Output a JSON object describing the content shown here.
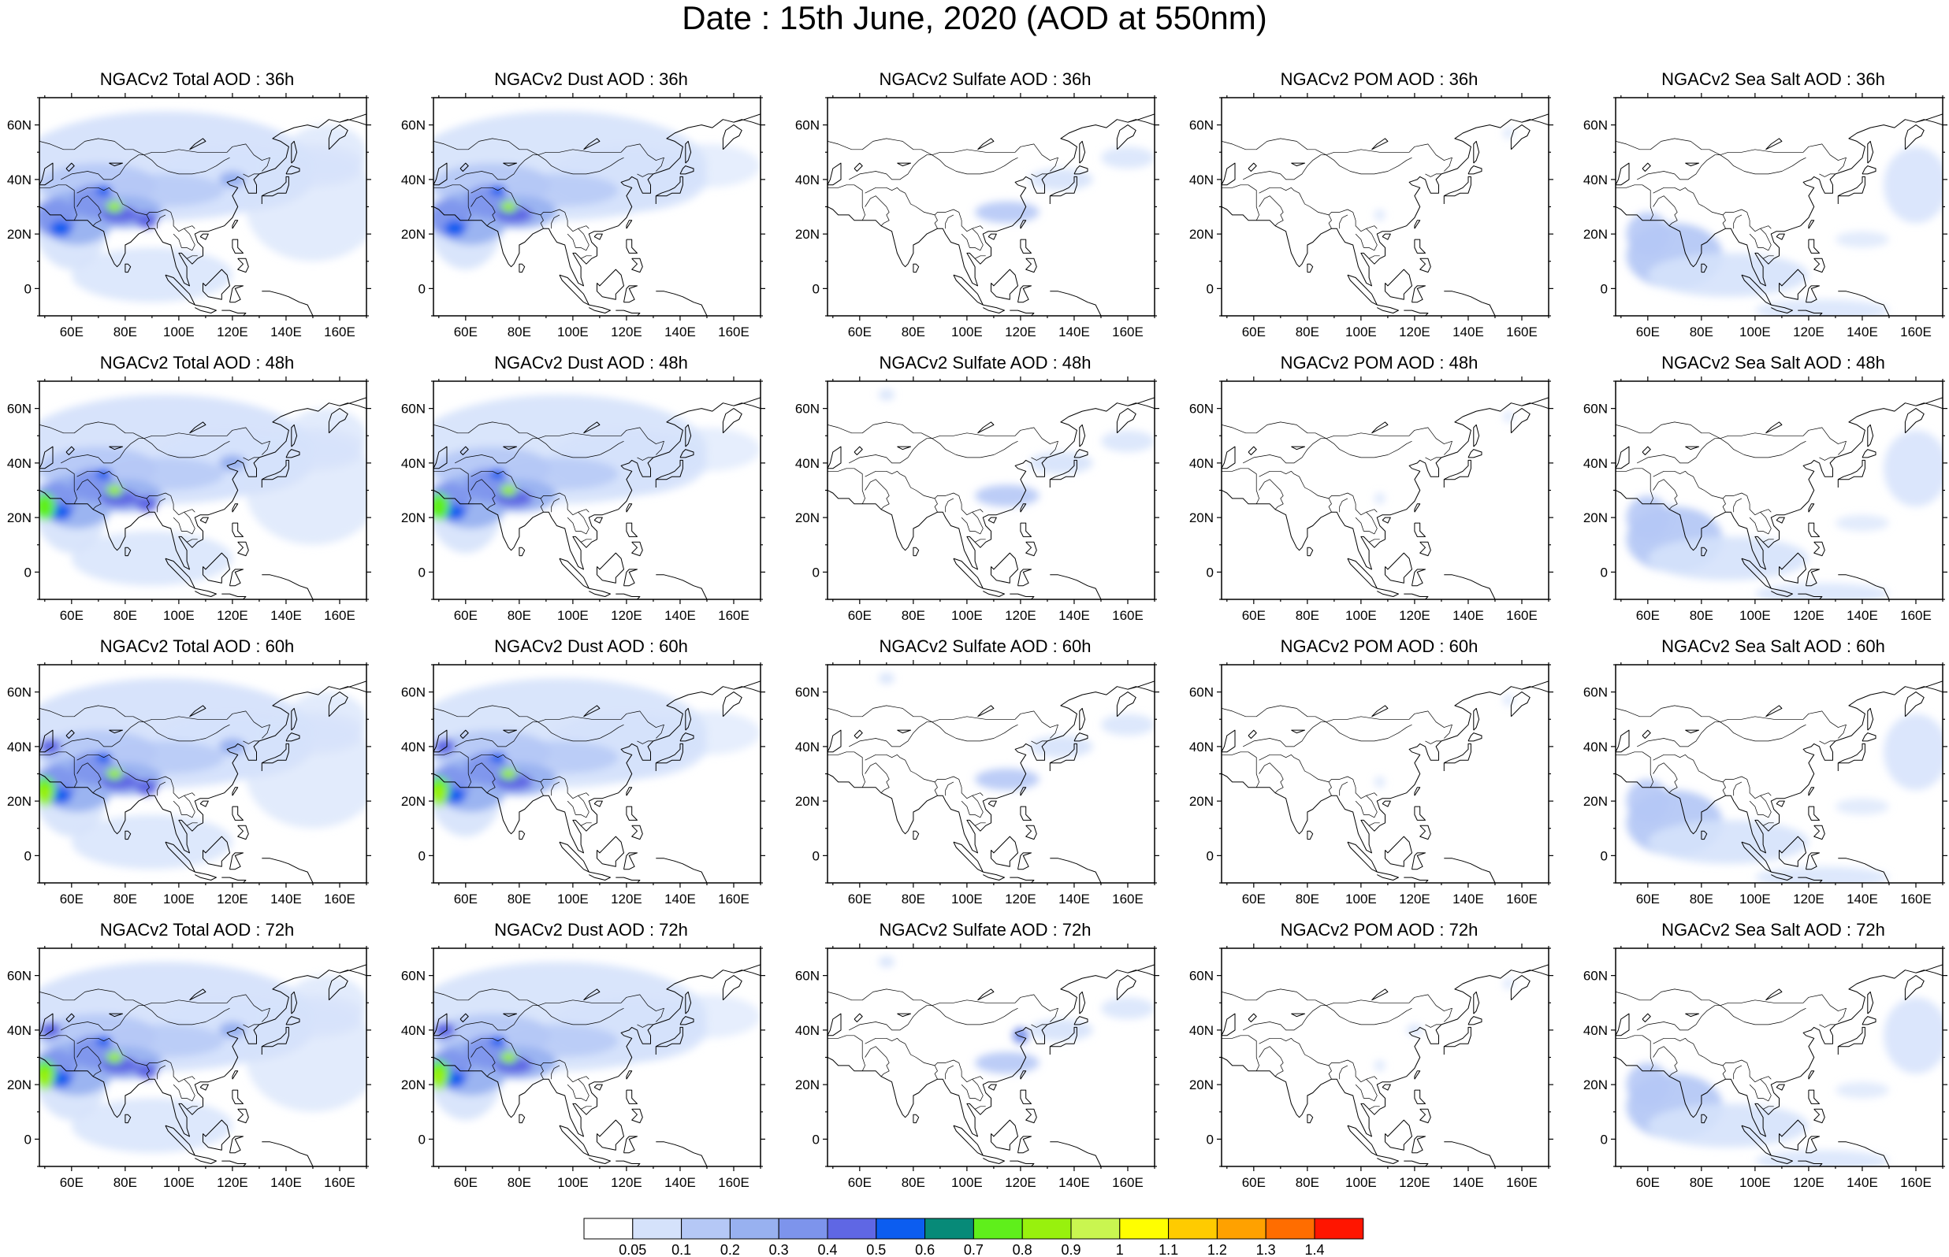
{
  "title": "Date : 15th June, 2020 (AOD at 550nm)",
  "colors": {
    "levels": [
      "#ffffff",
      "#d5e2fb",
      "#b5c8f6",
      "#98b1f0",
      "#7d94ec",
      "#5f67e4",
      "#0c5df0",
      "#078a78",
      "#5fef1b",
      "#98f10d",
      "#c9f650",
      "#fffe00",
      "#ffcb00",
      "#ffa100",
      "#ff6d00",
      "#ff1500"
    ],
    "coast": "#000000"
  },
  "colorbar": {
    "labels": [
      "0.05",
      "0.1",
      "0.2",
      "0.3",
      "0.4",
      "0.5",
      "0.6",
      "0.7",
      "0.8",
      "0.9",
      "1",
      "1.1",
      "1.2",
      "1.3",
      "1.4"
    ]
  },
  "axes": {
    "lon_labels": [
      "60E",
      "80E",
      "100E",
      "120E",
      "140E",
      "160E"
    ],
    "lon_values": [
      60,
      80,
      100,
      120,
      140,
      160
    ],
    "lat_labels": [
      "60N",
      "40N",
      "20N",
      "0"
    ],
    "lat_values": [
      60,
      40,
      20,
      0
    ],
    "lon_range": [
      48,
      170
    ],
    "lat_range": [
      -10,
      70
    ]
  },
  "panels": [
    {
      "title": "NGACv2 Total AOD : 36h",
      "species": "total",
      "hour": 36
    },
    {
      "title": "NGACv2 Dust AOD : 36h",
      "species": "dust",
      "hour": 36
    },
    {
      "title": "NGACv2 Sulfate AOD : 36h",
      "species": "sulfate",
      "hour": 36
    },
    {
      "title": "NGACv2 POM AOD : 36h",
      "species": "pom",
      "hour": 36
    },
    {
      "title": "NGACv2 Sea Salt AOD : 36h",
      "species": "seasalt",
      "hour": 36
    },
    {
      "title": "NGACv2 Total AOD : 48h",
      "species": "total",
      "hour": 48
    },
    {
      "title": "NGACv2 Dust AOD : 48h",
      "species": "dust",
      "hour": 48
    },
    {
      "title": "NGACv2 Sulfate AOD : 48h",
      "species": "sulfate",
      "hour": 48
    },
    {
      "title": "NGACv2 POM AOD : 48h",
      "species": "pom",
      "hour": 48
    },
    {
      "title": "NGACv2 Sea Salt AOD : 48h",
      "species": "seasalt",
      "hour": 48
    },
    {
      "title": "NGACv2 Total AOD : 60h",
      "species": "total",
      "hour": 60
    },
    {
      "title": "NGACv2 Dust AOD : 60h",
      "species": "dust",
      "hour": 60
    },
    {
      "title": "NGACv2 Sulfate AOD : 60h",
      "species": "sulfate",
      "hour": 60
    },
    {
      "title": "NGACv2 POM AOD : 60h",
      "species": "pom",
      "hour": 60
    },
    {
      "title": "NGACv2 Sea Salt AOD : 60h",
      "species": "seasalt",
      "hour": 60
    },
    {
      "title": "NGACv2 Total AOD : 72h",
      "species": "total",
      "hour": 72
    },
    {
      "title": "NGACv2 Dust AOD : 72h",
      "species": "dust",
      "hour": 72
    },
    {
      "title": "NGACv2 Sulfate AOD : 72h",
      "species": "sulfate",
      "hour": 72
    },
    {
      "title": "NGACv2 POM AOD : 72h",
      "species": "pom",
      "hour": 72
    },
    {
      "title": "NGACv2 Sea Salt  AOD : 72h",
      "species": "seasalt",
      "hour": 72
    }
  ]
}
